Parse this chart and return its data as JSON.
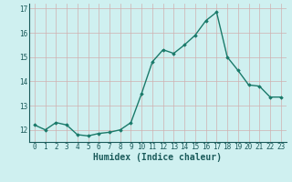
{
  "xlabel": "Humidex (Indice chaleur)",
  "x": [
    0,
    1,
    2,
    3,
    4,
    5,
    6,
    7,
    8,
    9,
    10,
    11,
    12,
    13,
    14,
    15,
    16,
    17,
    18,
    19,
    20,
    21,
    22,
    23
  ],
  "y": [
    12.2,
    12.0,
    12.3,
    12.2,
    11.8,
    11.75,
    11.85,
    11.9,
    12.0,
    12.3,
    13.5,
    14.8,
    15.3,
    15.15,
    15.5,
    15.9,
    16.5,
    16.85,
    15.0,
    14.45,
    13.85,
    13.8,
    13.35,
    13.35
  ],
  "line_color": "#1a7a6a",
  "marker": "D",
  "marker_size": 1.8,
  "line_width": 1.0,
  "bg_color": "#cff0f0",
  "grid_color": "#d0b0b0",
  "ylim": [
    11.5,
    17.2
  ],
  "xlim": [
    -0.5,
    23.5
  ],
  "yticks": [
    12,
    13,
    14,
    15,
    16,
    17
  ],
  "xticks": [
    0,
    1,
    2,
    3,
    4,
    5,
    6,
    7,
    8,
    9,
    10,
    11,
    12,
    13,
    14,
    15,
    16,
    17,
    18,
    19,
    20,
    21,
    22,
    23
  ],
  "tick_fontsize": 5.5,
  "xlabel_fontsize": 7.0
}
